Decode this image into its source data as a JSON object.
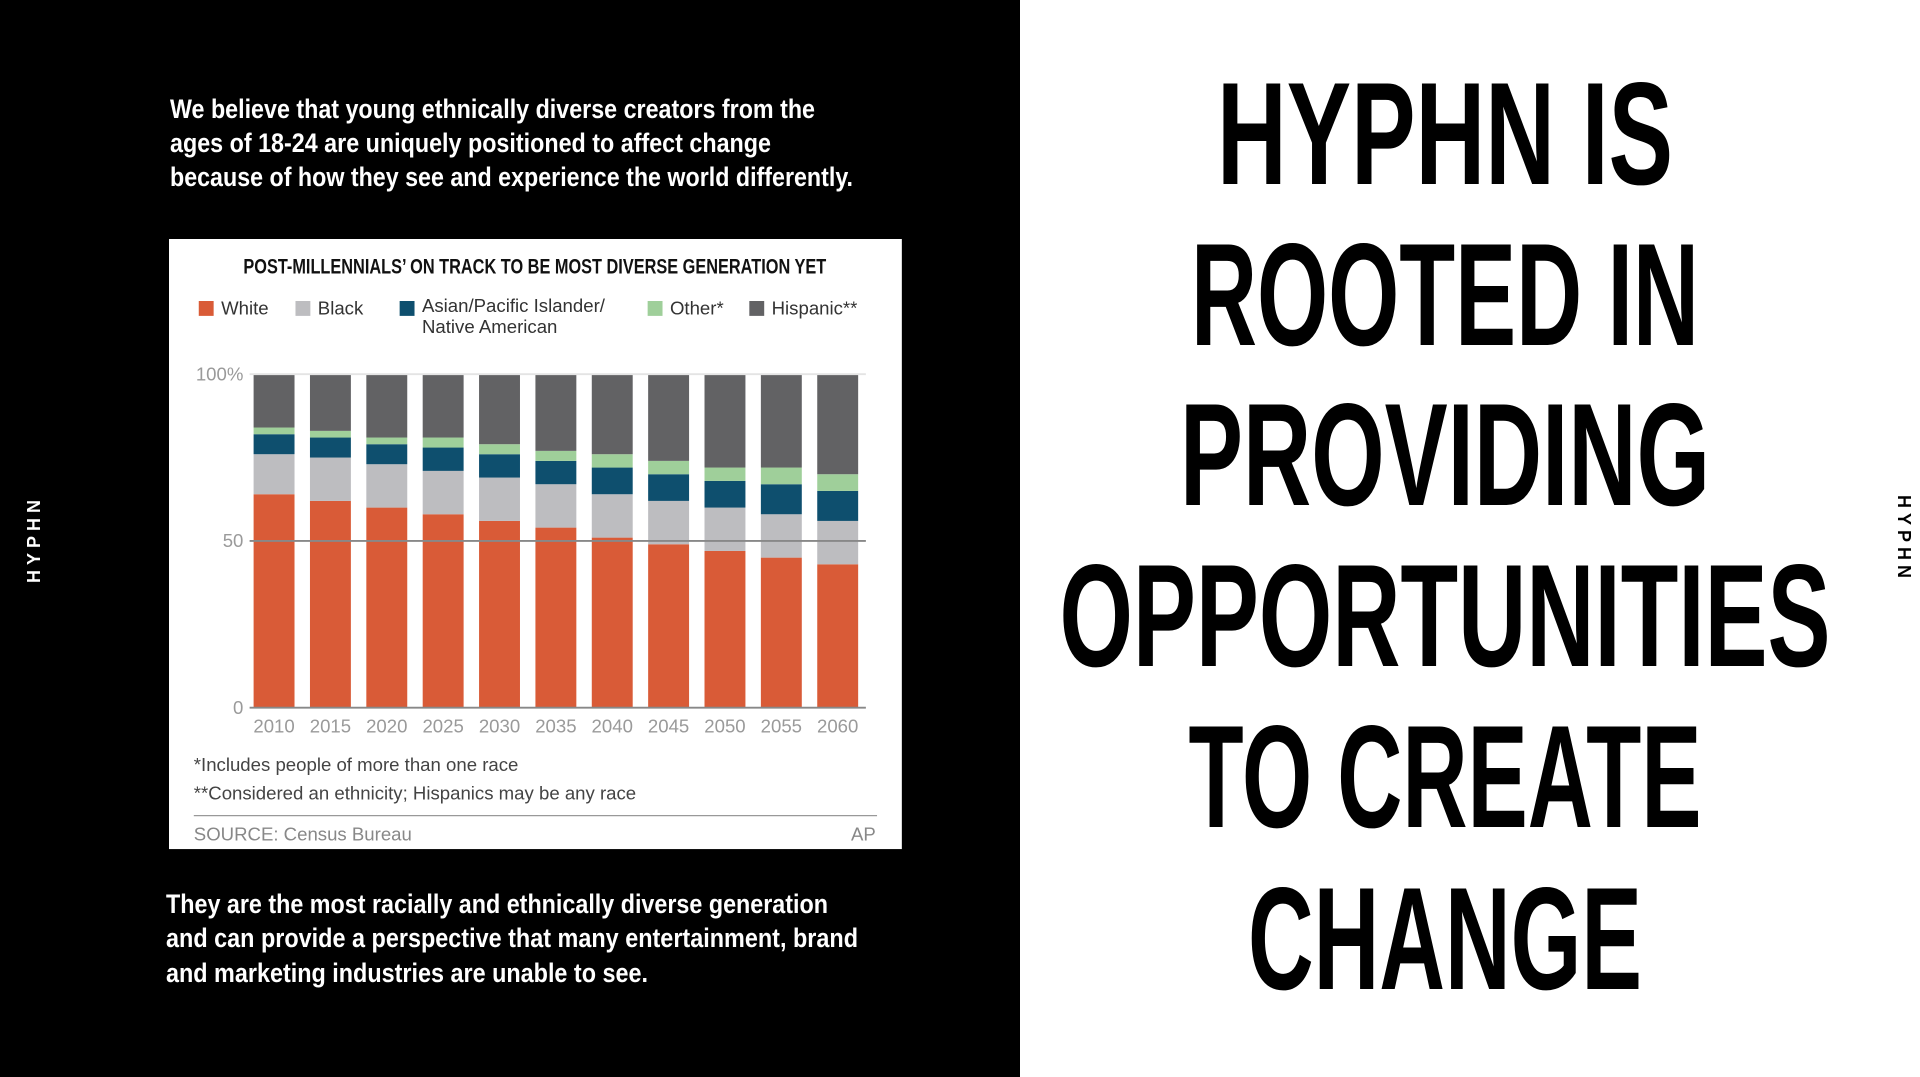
{
  "left": {
    "brand": "HYPHN",
    "intro_lines": [
      "We believe that young ethnically diverse creators from the",
      "ages of 18-24 are uniquely positioned to affect change",
      "because of how they see and experience the world differently."
    ],
    "outro_lines": [
      "They are the most racially and ethnically diverse generation",
      "and can provide a perspective that many entertainment, brand",
      "and marketing industries are unable to see."
    ]
  },
  "chart_data": {
    "type": "stacked_bar",
    "title": "POST-MILLENNIALS’ ON TRACK TO BE MOST DIVERSE GENERATION YET",
    "categories": [
      "2010",
      "2015",
      "2020",
      "2025",
      "2030",
      "2035",
      "2040",
      "2045",
      "2050",
      "2055",
      "2060"
    ],
    "series": [
      {
        "name": "White",
        "color": "#d95b37",
        "values": [
          64,
          62,
          60,
          58,
          56,
          54,
          51,
          49,
          47,
          45,
          43
        ]
      },
      {
        "name": "Black",
        "color": "#bdbdc0",
        "values": [
          12,
          13,
          13,
          13,
          13,
          13,
          13,
          13,
          13,
          13,
          13
        ]
      },
      {
        "name": "Asian/Pacific Islander/ Native American",
        "color": "#0e4f6e",
        "values": [
          6,
          6,
          6,
          7,
          7,
          7,
          8,
          8,
          8,
          9,
          9
        ]
      },
      {
        "name": "Other*",
        "color": "#9fcf9a",
        "values": [
          2,
          2,
          2,
          3,
          3,
          3,
          4,
          4,
          4,
          5,
          5
        ]
      },
      {
        "name": "Hispanic**",
        "color": "#626264",
        "values": [
          16,
          17,
          19,
          19,
          21,
          23,
          24,
          26,
          28,
          28,
          30
        ]
      }
    ],
    "ylim": [
      0,
      100
    ],
    "yticks": [
      0,
      50,
      {
        "value": 100,
        "label": "100%"
      }
    ],
    "notes": [
      "*Includes people of more than one race",
      "**Considered an ethnicity; Hispanics may be any race"
    ],
    "source": "SOURCE: Census Bureau",
    "credit": "AP"
  },
  "right": {
    "headline_lines": [
      "HYPHN IS",
      "ROOTED IN",
      "PROVIDING",
      "OPPORTUNITIES",
      "TO CREATE",
      "CHANGE"
    ],
    "brand": "HYPHN"
  }
}
